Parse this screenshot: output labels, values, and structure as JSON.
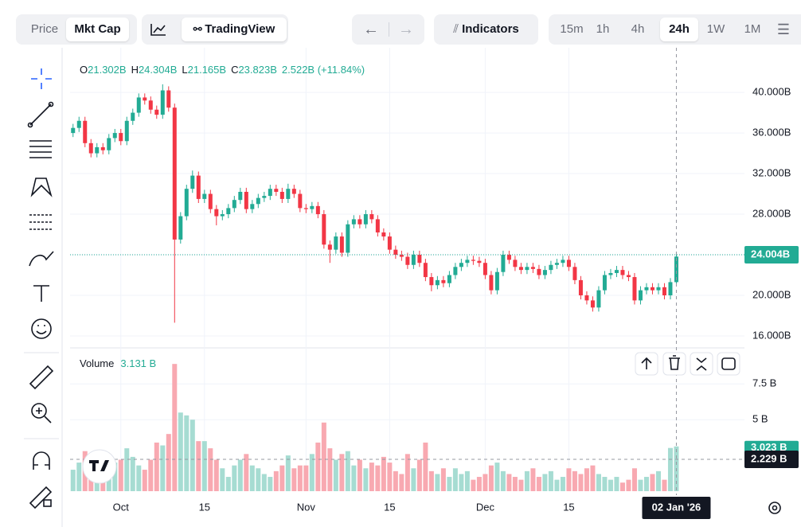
{
  "toolbar": {
    "mode_tabs": [
      "Price",
      "Mkt Cap"
    ],
    "active_mode": "Mkt Cap",
    "chart_tab": "TradingView",
    "indicators": "Indicators",
    "intervals": [
      "15m",
      "1h",
      "4h",
      "24h",
      "1W",
      "1M"
    ],
    "active_interval": "24h"
  },
  "chart_data": {
    "type": "candlestick",
    "legend": {
      "o_label": "O",
      "o": "21.302B",
      "h_label": "H",
      "h": "24.304B",
      "l_label": "L",
      "l": "21.165B",
      "c_label": "C",
      "c": "23.823B",
      "change": "2.522B (+11.84%)"
    },
    "open": [
      36.0,
      36.5,
      37.2,
      35.0,
      34.0,
      34.6,
      34.3,
      35.5,
      36.0,
      35.2,
      37.2,
      38.0,
      39.5,
      39.2,
      38.3,
      37.8,
      40.2,
      38.5,
      25.5,
      27.8,
      30.5,
      31.8,
      29.5,
      30.0,
      28.5,
      27.8,
      28.0,
      28.6,
      29.4,
      30.2,
      28.5,
      29.0,
      29.6,
      29.8,
      30.5,
      30.2,
      29.5,
      30.5,
      30.0,
      28.6,
      28.5,
      28.8,
      28.0,
      25.0,
      24.5,
      25.8,
      24.2,
      27.0,
      27.5,
      27.0,
      28.0,
      27.5,
      26.2,
      25.8,
      24.5,
      24.0,
      23.8,
      23.0,
      24.0,
      23.2,
      21.8,
      21.0,
      21.5,
      21.2,
      22.0,
      22.8,
      23.2,
      23.5,
      23.4,
      23.2,
      22.0,
      20.5,
      22.3,
      24.0,
      23.5,
      22.8,
      22.5,
      22.8,
      22.6,
      22.0,
      22.5,
      23.0,
      23.2,
      23.5,
      22.8,
      21.5,
      20.0,
      19.5,
      18.8,
      20.5,
      22.0,
      22.2,
      22.5,
      22.0,
      21.8,
      19.5,
      20.5,
      20.8,
      20.5,
      20.8,
      20.0,
      21.302
    ],
    "high": [
      36.9,
      37.6,
      37.6,
      35.4,
      35.0,
      35.0,
      35.9,
      36.4,
      36.4,
      37.6,
      38.4,
      39.9,
      39.9,
      39.6,
      38.7,
      40.8,
      40.6,
      38.9,
      28.2,
      30.9,
      32.3,
      32.2,
      30.4,
      30.4,
      28.9,
      28.4,
      29.0,
      29.8,
      30.6,
      30.6,
      29.4,
      30.0,
      30.2,
      30.9,
      30.9,
      30.6,
      31.0,
      30.9,
      30.4,
      29.0,
      29.2,
      29.2,
      28.4,
      25.4,
      26.2,
      26.2,
      27.4,
      27.9,
      27.9,
      28.4,
      28.4,
      27.9,
      26.6,
      26.2,
      24.9,
      24.4,
      24.2,
      24.4,
      24.4,
      23.6,
      22.2,
      21.9,
      21.9,
      22.4,
      23.2,
      23.6,
      23.9,
      23.9,
      23.8,
      23.6,
      22.4,
      22.7,
      24.4,
      24.4,
      23.9,
      23.2,
      23.2,
      23.2,
      23.0,
      22.9,
      23.4,
      23.6,
      23.9,
      23.9,
      23.2,
      21.9,
      20.4,
      19.9,
      20.9,
      22.4,
      22.6,
      22.9,
      22.9,
      22.4,
      22.2,
      20.9,
      21.2,
      21.2,
      21.2,
      21.2,
      21.7,
      24.304
    ],
    "low": [
      35.6,
      36.1,
      34.6,
      33.6,
      33.6,
      33.9,
      33.9,
      35.1,
      34.8,
      34.8,
      36.8,
      37.6,
      38.8,
      37.9,
      37.4,
      37.4,
      38.1,
      17.3,
      25.1,
      27.4,
      30.1,
      29.1,
      29.1,
      28.1,
      26.9,
      27.4,
      27.6,
      28.2,
      29.0,
      28.1,
      28.1,
      28.6,
      29.2,
      29.4,
      29.8,
      29.1,
      29.1,
      29.6,
      28.2,
      28.1,
      28.1,
      27.6,
      24.6,
      23.2,
      24.1,
      23.8,
      23.8,
      26.6,
      26.6,
      26.6,
      27.1,
      25.8,
      25.4,
      24.1,
      23.6,
      23.4,
      22.6,
      22.6,
      22.8,
      21.4,
      20.4,
      20.6,
      20.8,
      20.8,
      21.6,
      22.4,
      22.8,
      23.0,
      22.8,
      21.6,
      20.1,
      20.1,
      21.9,
      23.1,
      22.4,
      22.1,
      22.1,
      22.2,
      21.6,
      21.6,
      22.1,
      22.6,
      22.8,
      22.4,
      21.1,
      19.6,
      19.1,
      18.4,
      18.4,
      20.1,
      21.6,
      21.8,
      21.6,
      21.4,
      19.1,
      19.1,
      20.1,
      20.1,
      20.1,
      19.6,
      19.6,
      21.165
    ],
    "close": [
      36.5,
      37.2,
      35.0,
      34.0,
      34.6,
      34.3,
      35.5,
      36.0,
      35.2,
      37.2,
      38.0,
      39.5,
      39.2,
      38.3,
      37.8,
      40.2,
      38.5,
      25.5,
      27.8,
      30.5,
      31.8,
      29.5,
      30.0,
      28.5,
      27.8,
      28.0,
      28.6,
      29.4,
      30.2,
      28.5,
      29.0,
      29.6,
      29.8,
      30.5,
      30.2,
      29.5,
      30.5,
      30.0,
      28.6,
      28.5,
      28.8,
      28.0,
      25.0,
      24.5,
      25.8,
      24.2,
      27.0,
      27.5,
      27.0,
      28.0,
      27.5,
      26.2,
      25.8,
      24.5,
      24.0,
      23.8,
      23.0,
      24.0,
      23.2,
      21.8,
      21.0,
      21.5,
      21.2,
      22.0,
      22.8,
      23.2,
      23.5,
      23.4,
      23.2,
      22.0,
      20.5,
      22.3,
      24.0,
      23.5,
      22.8,
      22.5,
      22.8,
      22.6,
      22.0,
      22.5,
      23.0,
      23.2,
      23.5,
      22.8,
      21.5,
      20.0,
      19.5,
      18.8,
      20.5,
      22.0,
      22.2,
      22.5,
      22.0,
      21.8,
      19.5,
      20.5,
      20.8,
      20.5,
      20.8,
      20.0,
      21.302,
      23.823
    ],
    "xlim": [
      -0.5,
      112.4
    ],
    "xticks": [
      {
        "value": 8,
        "label": "Oct"
      },
      {
        "value": 22,
        "label": "15"
      },
      {
        "value": 39,
        "label": "Nov"
      },
      {
        "value": 53,
        "label": "15"
      },
      {
        "value": 69,
        "label": "Dec"
      },
      {
        "value": 83,
        "label": "15"
      }
    ],
    "ylim": [
      14.9,
      44.4
    ],
    "yticks": [
      {
        "value": 40,
        "label": "40.000B"
      },
      {
        "value": 36,
        "label": "36.000B"
      },
      {
        "value": 32,
        "label": "32.000B"
      },
      {
        "value": 28,
        "label": "28.000B"
      },
      {
        "value": 24,
        "label": "24.000B"
      },
      {
        "value": 20,
        "label": "20.000B"
      },
      {
        "value": 16,
        "label": "16.000B"
      }
    ],
    "last_price": {
      "value": 24.004,
      "label": "24.004B"
    },
    "up_color": "#22ab94",
    "down_color": "#f23645",
    "volume_up_color": "#a6dcd2",
    "volume_down_color": "#f8a9b1",
    "grid": true,
    "volume": {
      "name": "Volume",
      "legend_value": "3.131 B",
      "values": [
        1.5,
        2.0,
        2.8,
        2.2,
        1.4,
        1.2,
        1.8,
        2.0,
        2.2,
        3.0,
        2.4,
        1.8,
        1.5,
        2.2,
        3.4,
        3.2,
        4.0,
        8.9,
        5.5,
        5.3,
        5.0,
        3.5,
        3.5,
        3.0,
        2.2,
        1.6,
        1.0,
        1.8,
        2.2,
        2.6,
        1.8,
        1.6,
        1.2,
        1.0,
        1.4,
        1.8,
        2.5,
        1.6,
        1.8,
        1.8,
        2.6,
        3.4,
        4.8,
        3.0,
        2.2,
        2.6,
        2.8,
        1.8,
        2.2,
        1.6,
        2.0,
        1.8,
        2.4,
        2.0,
        1.4,
        1.2,
        2.6,
        1.6,
        2.2,
        3.4,
        1.4,
        1.2,
        1.6,
        1.0,
        1.6,
        1.2,
        1.4,
        0.8,
        1.0,
        1.2,
        1.8,
        2.0,
        1.4,
        1.2,
        1.0,
        0.8,
        1.4,
        1.6,
        1.0,
        1.2,
        1.4,
        0.8,
        1.0,
        1.6,
        1.4,
        1.2,
        1.6,
        1.8,
        1.2,
        1.0,
        0.8,
        1.0,
        0.6,
        0.8,
        1.6,
        0.8,
        1.0,
        1.2,
        1.4,
        0.8,
        3.023,
        3.131
      ],
      "ylim": [
        0,
        9.8
      ],
      "yticks": [
        {
          "value": 7.5,
          "label": "7.5 B"
        },
        {
          "value": 5,
          "label": "5 B"
        }
      ],
      "last_label": {
        "value": 3.023,
        "label": "3.023 B"
      },
      "crosshair_label": {
        "value": 2.229,
        "label": "2.229 B"
      }
    },
    "crosshair": {
      "value": 101,
      "label": "02 Jan '26"
    }
  }
}
